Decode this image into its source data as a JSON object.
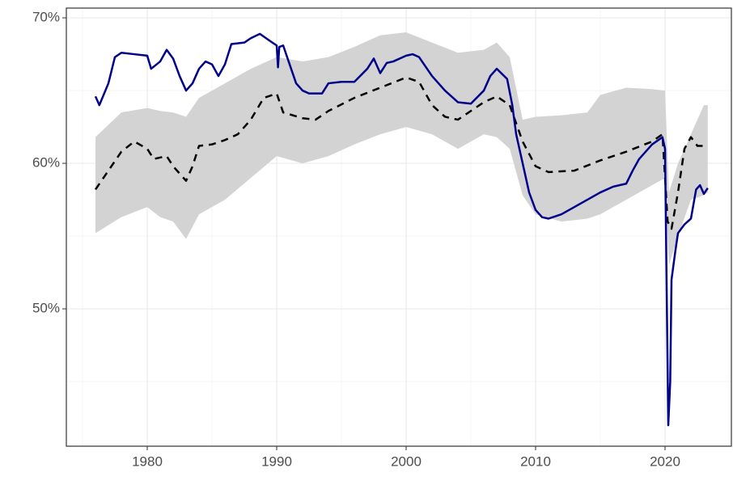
{
  "chart_data": {
    "type": "line",
    "xlim": [
      1973.75,
      2025.125
    ],
    "ylim": [
      40.56,
      70.67
    ],
    "xticks": [
      1980,
      1990,
      2000,
      2010,
      2020
    ],
    "yticks": [
      {
        "value": 50,
        "label": "50%"
      },
      {
        "value": 60,
        "label": "60%"
      },
      {
        "value": 70,
        "label": "70%"
      }
    ],
    "grid": true,
    "band": {
      "color": "#d3d3d3",
      "x": [
        1976,
        1978,
        1980,
        1981,
        1982,
        1983,
        1984,
        1986,
        1988,
        1990,
        1992,
        1994,
        1996,
        1998,
        2000,
        2002,
        2004,
        2006,
        2007,
        2008,
        2009,
        2010,
        2012,
        2014,
        2015,
        2017,
        2019,
        2020,
        2020.3,
        2021,
        2022,
        2023,
        2023.3
      ],
      "upper": [
        61.8,
        63.5,
        63.8,
        63.6,
        63.5,
        63.2,
        64.5,
        65.5,
        66.5,
        67.3,
        67.0,
        67.3,
        68.0,
        68.8,
        69.0,
        68.3,
        67.6,
        67.8,
        68.3,
        67.3,
        63.0,
        63.2,
        63.3,
        63.5,
        64.7,
        65.2,
        65.1,
        65.0,
        58.0,
        60.0,
        62.0,
        64.0,
        64.0
      ],
      "lower": [
        55.2,
        56.3,
        57.0,
        56.3,
        56.0,
        54.8,
        56.5,
        57.5,
        59.0,
        60.5,
        60.0,
        60.5,
        61.3,
        62.0,
        62.5,
        62.0,
        61.0,
        62.0,
        61.8,
        61.0,
        57.8,
        56.5,
        56.0,
        56.2,
        56.5,
        57.5,
        58.5,
        59.0,
        53.0,
        55.0,
        57.5,
        57.8,
        58.0
      ]
    },
    "series": [
      {
        "color": "#000000",
        "dash": true,
        "x": [
          1976,
          1977,
          1978,
          1979,
          1980,
          1980.5,
          1981.5,
          1982,
          1983,
          1983.5,
          1984,
          1985,
          1986,
          1987,
          1988,
          1989,
          1990,
          1990.5,
          1992,
          1993,
          1994,
          1996,
          1998,
          2000,
          2001,
          2002,
          2003,
          2004,
          2005,
          2006,
          2007,
          2008,
          2009,
          2010,
          2011,
          2013,
          2015,
          2017,
          2019,
          2019.8,
          2020.2,
          2020.5,
          2021,
          2021.5,
          2022,
          2022.5,
          2023.3
        ],
        "values": [
          58.2,
          59.5,
          60.8,
          61.5,
          61.0,
          60.3,
          60.5,
          59.8,
          58.8,
          59.8,
          61.2,
          61.3,
          61.6,
          62.0,
          63.0,
          64.5,
          64.8,
          63.5,
          63.1,
          63.0,
          63.6,
          64.5,
          65.2,
          65.9,
          65.6,
          64.0,
          63.2,
          63.0,
          63.6,
          64.2,
          64.6,
          64.0,
          61.5,
          59.8,
          59.4,
          59.5,
          60.2,
          60.8,
          61.5,
          62.0,
          56.0,
          55.5,
          58.0,
          61.0,
          61.8,
          61.2,
          61.2
        ]
      },
      {
        "color": "#00008b",
        "dash": false,
        "x": [
          1976,
          1976.3,
          1977,
          1977.5,
          1978,
          1979,
          1980,
          1980.3,
          1981,
          1981.5,
          1982,
          1982.5,
          1983,
          1983.5,
          1984,
          1984.5,
          1985,
          1985.5,
          1986,
          1986.5,
          1987.5,
          1988,
          1988.7,
          1989.5,
          1990,
          1990.1,
          1990.2,
          1990.5,
          1991,
          1991.5,
          1992,
          1992.5,
          1993.5,
          1994,
          1995,
          1996,
          1997,
          1997.5,
          1998,
          1998.5,
          1999,
          2000,
          2000.5,
          2001,
          2002,
          2003,
          2004,
          2005,
          2006,
          2006.5,
          2007,
          2007.8,
          2008.2,
          2008.5,
          2009,
          2009.5,
          2010,
          2010.5,
          2011,
          2012,
          2013,
          2014,
          2015,
          2016,
          2017,
          2017.5,
          2018,
          2019,
          2019.8,
          2020.0,
          2020.25,
          2020.4,
          2020.5,
          2020.8,
          2021,
          2021.5,
          2022,
          2022.4,
          2022.7,
          2023,
          2023.3
        ],
        "values": [
          64.6,
          64.0,
          65.5,
          67.3,
          67.6,
          67.5,
          67.4,
          66.5,
          67.0,
          67.8,
          67.2,
          66.0,
          65.0,
          65.5,
          66.5,
          67.0,
          66.8,
          66.0,
          66.8,
          68.2,
          68.3,
          68.6,
          68.9,
          68.4,
          68.1,
          66.6,
          68.0,
          68.1,
          66.8,
          65.5,
          65.0,
          64.8,
          64.8,
          65.5,
          65.6,
          65.6,
          66.5,
          67.2,
          66.2,
          66.9,
          67.0,
          67.4,
          67.5,
          67.3,
          66.0,
          65.0,
          64.2,
          64.1,
          65.0,
          66.0,
          66.5,
          65.8,
          64.0,
          62.0,
          60.0,
          58.0,
          56.8,
          56.3,
          56.2,
          56.5,
          57.0,
          57.5,
          58.0,
          58.4,
          58.6,
          59.5,
          60.3,
          61.3,
          61.8,
          61.0,
          42.0,
          45.0,
          52.0,
          54.0,
          55.2,
          55.8,
          56.2,
          58.2,
          58.5,
          57.9,
          58.3
        ]
      }
    ]
  }
}
